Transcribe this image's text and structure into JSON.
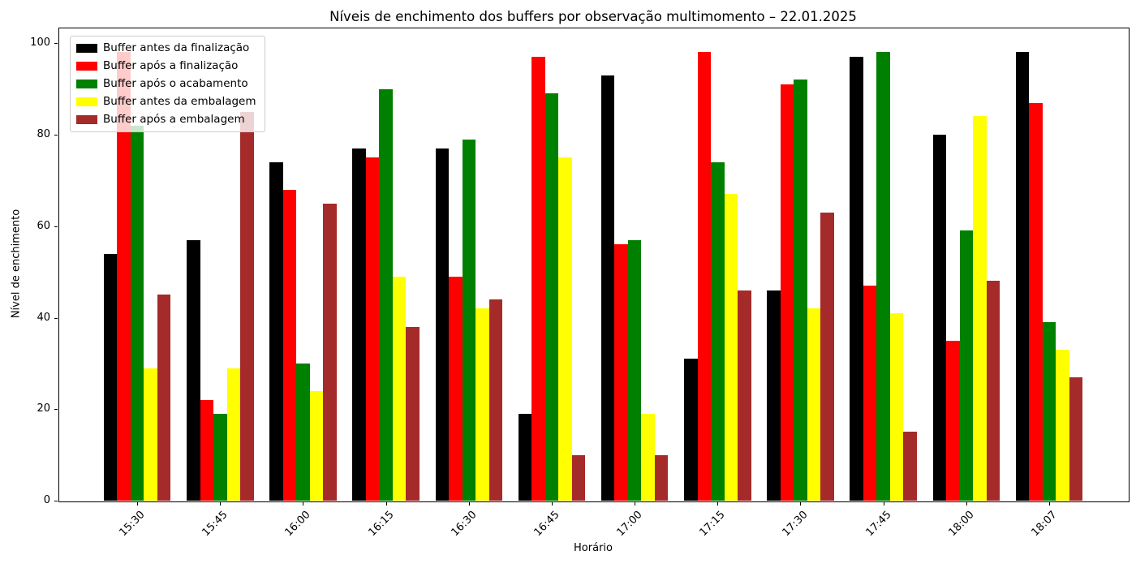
{
  "chart_data": {
    "type": "bar",
    "title": "Níveis de enchimento dos buffers por observação multimomento – 22.01.2025",
    "xlabel": "Horário",
    "ylabel": "Nível de enchimento",
    "categories": [
      "15:30",
      "15:45",
      "16:00",
      "16:15",
      "16:30",
      "16:45",
      "17:00",
      "17:15",
      "17:30",
      "17:45",
      "18:00",
      "18:07"
    ],
    "series": [
      {
        "name": "Buffer antes da finalização",
        "color": "#000000",
        "values": [
          54,
          57,
          74,
          77,
          77,
          19,
          93,
          31,
          46,
          97,
          80,
          98
        ]
      },
      {
        "name": "Buffer após a finalização",
        "color": "#ff0000",
        "values": [
          98,
          22,
          68,
          75,
          49,
          97,
          56,
          98,
          91,
          47,
          35,
          87
        ]
      },
      {
        "name": "Buffer após o acabamento",
        "color": "#008000",
        "values": [
          82,
          19,
          30,
          90,
          79,
          89,
          57,
          74,
          92,
          98,
          59,
          39
        ]
      },
      {
        "name": "Buffer antes da embalagem",
        "color": "#ffff00",
        "values": [
          29,
          29,
          24,
          49,
          42,
          75,
          19,
          67,
          42,
          41,
          84,
          33
        ]
      },
      {
        "name": "Buffer após a embalagem",
        "color": "#a52a2a",
        "values": [
          45,
          85,
          65,
          38,
          44,
          10,
          10,
          46,
          63,
          15,
          48,
          27
        ]
      }
    ],
    "yticks": [
      0,
      20,
      40,
      60,
      80,
      100
    ],
    "ylim": [
      0,
      103.4
    ],
    "grid": false,
    "legend_position": "upper left",
    "background_color": "#ffffff",
    "spine_color": "#000000"
  }
}
